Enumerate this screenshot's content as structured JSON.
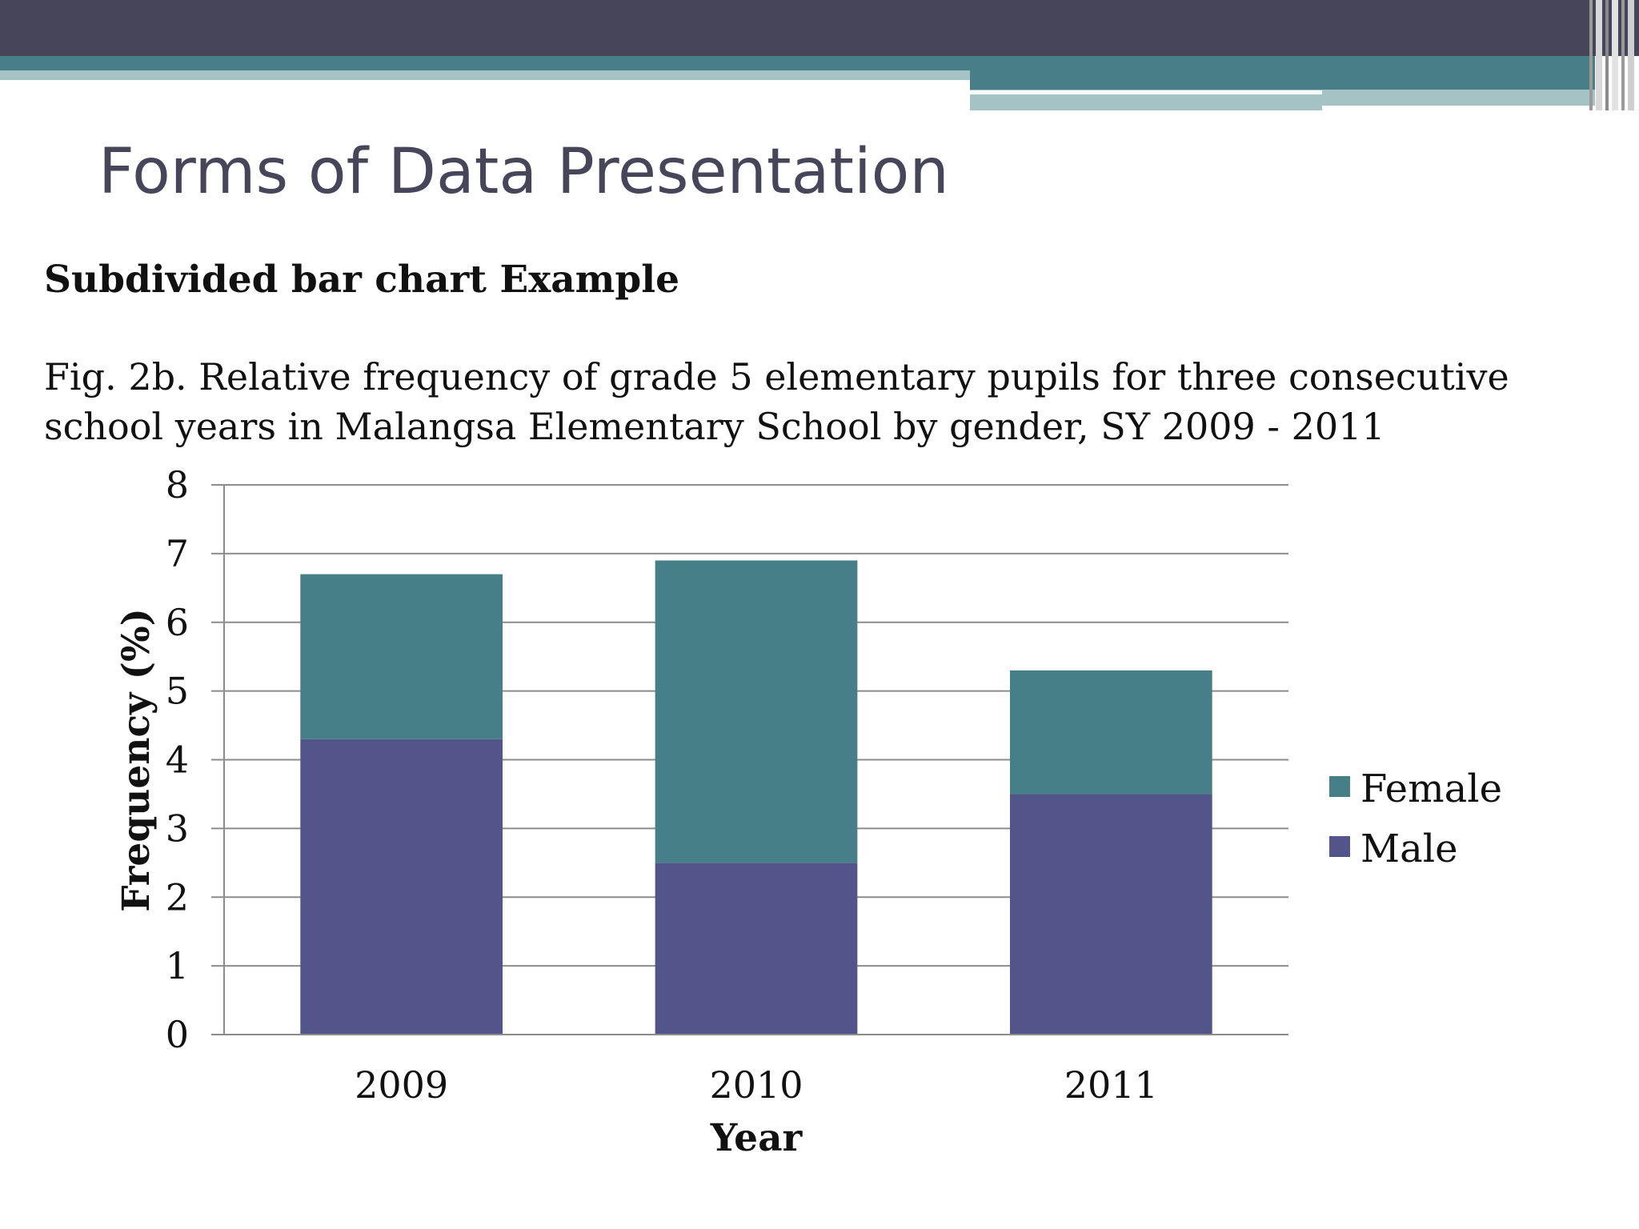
{
  "slide": {
    "title": "Forms of Data Presentation",
    "subtitle": "Subdivided bar chart Example",
    "caption_line1": "Fig. 2b. Relative frequency of grade 5 elementary pupils for three consecutive",
    "caption_line2": "school years in Malangsa Elementary School by gender, SY 2009 - 2011"
  },
  "theme": {
    "dark": "#46455a",
    "teal": "#487f86",
    "light_teal": "#a5c3c5"
  },
  "chart_data": {
    "type": "bar",
    "stacked": true,
    "categories": [
      "2009",
      "2010",
      "2011"
    ],
    "series": [
      {
        "name": "Male",
        "values": [
          4.3,
          2.5,
          3.5
        ],
        "color": "#53548a"
      },
      {
        "name": "Female",
        "values": [
          2.4,
          4.4,
          1.8
        ],
        "color": "#467f87"
      }
    ],
    "xlabel": "Year",
    "ylabel": "Frequency (%)",
    "ylim": [
      0,
      8
    ],
    "yticks": [
      "0",
      "1",
      "2",
      "3",
      "4",
      "5",
      "6",
      "7",
      "8"
    ],
    "grid": true,
    "legend": "right",
    "legend_order": [
      "Female",
      "Male"
    ]
  }
}
